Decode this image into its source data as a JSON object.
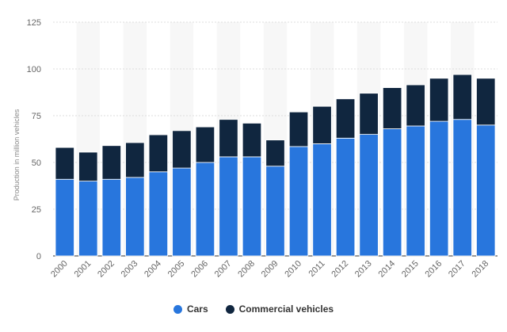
{
  "chart_data": {
    "type": "bar",
    "stacked": true,
    "ylabel": "Production in million vehicles",
    "xlabel": "",
    "ylim": [
      0,
      125
    ],
    "yticks": [
      0,
      25,
      50,
      75,
      100,
      125
    ],
    "grid": true,
    "legend_position": "bottom",
    "categories": [
      "2000",
      "2001",
      "2002",
      "2003",
      "2004",
      "2005",
      "2006",
      "2007",
      "2008",
      "2009",
      "2010",
      "2011",
      "2012",
      "2013",
      "2014",
      "2015",
      "2016",
      "2017",
      "2018"
    ],
    "series": [
      {
        "name": "Cars",
        "color": "#2876dd",
        "values": [
          41,
          40,
          41,
          42,
          45,
          47,
          50,
          53,
          53,
          48,
          58.5,
          60,
          63,
          65,
          68,
          69.5,
          72,
          73,
          70
        ]
      },
      {
        "name": "Commercial vehicles",
        "color": "#10263f",
        "values": [
          17,
          15.5,
          18,
          18.6,
          19.8,
          20,
          19,
          20,
          18,
          14,
          18.5,
          20,
          21,
          22,
          22,
          22,
          23,
          24,
          25
        ]
      }
    ]
  }
}
